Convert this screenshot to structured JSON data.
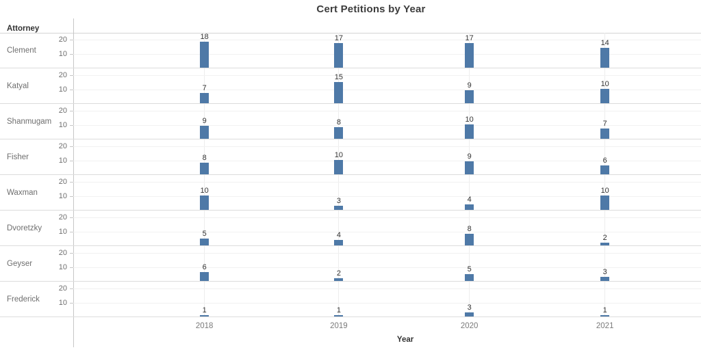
{
  "title": "Cert Petitions by Year",
  "row_field_header": "Attorney",
  "x_axis_title": "Year",
  "colors": {
    "bar": "#4e79a7",
    "dark_text": "#333333",
    "gray_text": "#6e6e6e",
    "axis_line": "#c6c6c6",
    "gridline": "#f1f1f1",
    "separator": "#dcdcdc"
  },
  "chart_data": {
    "type": "bar",
    "layout": "small-multiples-rows",
    "title": "Cert Petitions by Year",
    "xlabel": "Year",
    "row_field": "Attorney",
    "categories": [
      "2018",
      "2019",
      "2020",
      "2021"
    ],
    "series": [
      {
        "name": "Clement",
        "values": [
          18,
          17,
          17,
          14
        ]
      },
      {
        "name": "Katyal",
        "values": [
          7,
          15,
          9,
          10
        ]
      },
      {
        "name": "Shanmugam",
        "values": [
          9,
          8,
          10,
          7
        ]
      },
      {
        "name": "Fisher",
        "values": [
          8,
          10,
          9,
          6
        ]
      },
      {
        "name": "Waxman",
        "values": [
          10,
          3,
          4,
          10
        ]
      },
      {
        "name": "Dvoretzky",
        "values": [
          5,
          4,
          8,
          2
        ]
      },
      {
        "name": "Geyser",
        "values": [
          6,
          2,
          5,
          3
        ]
      },
      {
        "name": "Frederick",
        "values": [
          1,
          1,
          3,
          1
        ]
      }
    ],
    "yticks": [
      10,
      20
    ],
    "ylim": [
      0,
      24.8
    ],
    "grid": true,
    "legend": false
  }
}
